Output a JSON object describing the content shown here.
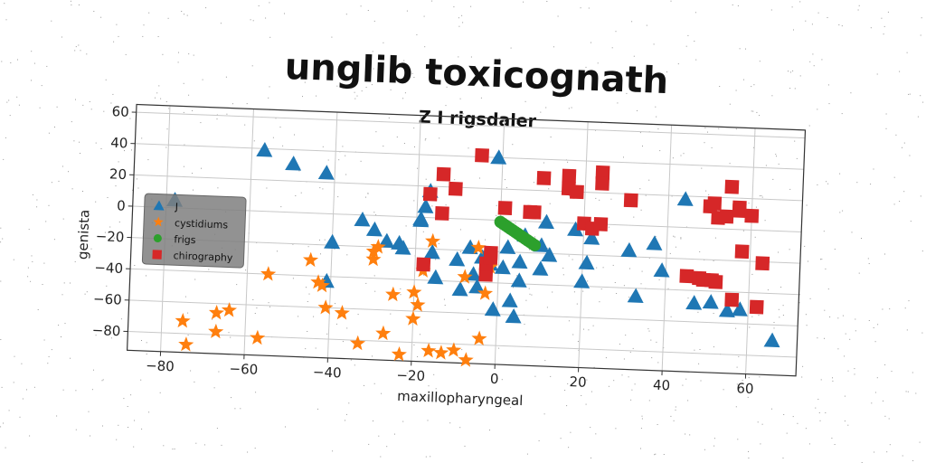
{
  "chart_data": {
    "type": "scatter",
    "title": "unglib toxicognath",
    "subtitle": "Z I rigsdaler",
    "xlabel": "maxillopharyngeal",
    "ylabel": "genista",
    "xlim": [
      -88,
      72
    ],
    "ylim": [
      -92,
      65
    ],
    "xticks": [
      -80,
      -60,
      -40,
      -20,
      0,
      20,
      40,
      60
    ],
    "yticks": [
      -80,
      -60,
      -40,
      -20,
      0,
      20,
      40,
      60
    ],
    "grid": true,
    "legend_position": "center-left",
    "series": [
      {
        "name": "J",
        "marker": "triangle",
        "color": "#1f77b4",
        "points": [
          [
            -57,
            39
          ],
          [
            -50,
            31
          ],
          [
            -42,
            26
          ],
          [
            -78,
            5
          ],
          [
            -40,
            -18
          ],
          [
            -33,
            -3
          ],
          [
            -30,
            -9
          ],
          [
            -27,
            -16
          ],
          [
            -24,
            -17
          ],
          [
            -23,
            -20
          ],
          [
            -19,
            -2
          ],
          [
            -19,
            -1
          ],
          [
            -18,
            7
          ],
          [
            -17,
            17
          ],
          [
            -16,
            -22
          ],
          [
            -15,
            -38
          ],
          [
            -10,
            -26
          ],
          [
            -9,
            -45
          ],
          [
            -7,
            -18
          ],
          [
            -6,
            -35
          ],
          [
            -5,
            -43
          ],
          [
            -4,
            -24
          ],
          [
            -2,
            -28
          ],
          [
            -1,
            -57
          ],
          [
            -1,
            40
          ],
          [
            1,
            -30
          ],
          [
            2,
            -17
          ],
          [
            3,
            -51
          ],
          [
            4,
            -61
          ],
          [
            5,
            -38
          ],
          [
            5,
            -26
          ],
          [
            6,
            -9
          ],
          [
            10,
            -15
          ],
          [
            10,
            -30
          ],
          [
            11,
            0
          ],
          [
            12,
            -21
          ],
          [
            18,
            -4
          ],
          [
            20,
            -37
          ],
          [
            21,
            -25
          ],
          [
            22,
            -9
          ],
          [
            31,
            -16
          ],
          [
            33,
            -45
          ],
          [
            37,
            -11
          ],
          [
            39,
            -28
          ],
          [
            44,
            18
          ],
          [
            47,
            -48
          ],
          [
            51,
            -47
          ],
          [
            55,
            -52
          ],
          [
            58,
            -51
          ],
          [
            66,
            -70
          ],
          [
            -41,
            -43
          ]
        ]
      },
      {
        "name": "cystidiums",
        "marker": "star",
        "color": "#ff7f0e",
        "points": [
          [
            -75,
            -72
          ],
          [
            -74,
            -87
          ],
          [
            -67,
            -66
          ],
          [
            -67,
            -78
          ],
          [
            -64,
            -64
          ],
          [
            -57,
            -81
          ],
          [
            -55,
            -40
          ],
          [
            -45,
            -30
          ],
          [
            -43,
            -44
          ],
          [
            -42,
            -46
          ],
          [
            -41,
            -60
          ],
          [
            -37,
            -63
          ],
          [
            -33,
            -82
          ],
          [
            -30,
            -28
          ],
          [
            -30,
            -23
          ],
          [
            -29,
            -20
          ],
          [
            -27,
            -75
          ],
          [
            -25,
            -50
          ],
          [
            -23,
            -88
          ],
          [
            -20,
            -48
          ],
          [
            -20,
            -65
          ],
          [
            -19,
            -56
          ],
          [
            -18,
            -34
          ],
          [
            -16,
            -15
          ],
          [
            -16,
            -85
          ],
          [
            -13,
            -86
          ],
          [
            -10,
            -84
          ],
          [
            -7,
            -90
          ],
          [
            -4,
            -76
          ],
          [
            -3,
            -47
          ],
          [
            -2,
            -30
          ],
          [
            -8,
            -37
          ],
          [
            -5,
            -18
          ]
        ]
      },
      {
        "name": "frigs",
        "marker": "circle",
        "color": "#2ca02c",
        "points": [
          [
            0,
            -1
          ],
          [
            0.6,
            -2
          ],
          [
            1.2,
            -3
          ],
          [
            1.8,
            -4
          ],
          [
            2.4,
            -5
          ],
          [
            3.0,
            -6
          ],
          [
            3.6,
            -7
          ],
          [
            4.2,
            -8
          ],
          [
            4.8,
            -9
          ],
          [
            5.4,
            -10
          ],
          [
            6.0,
            -11
          ],
          [
            6.6,
            -12
          ],
          [
            7.2,
            -13
          ],
          [
            7.8,
            -14
          ],
          [
            8.4,
            -15
          ]
        ]
      },
      {
        "name": "chirography",
        "marker": "square",
        "color": "#d62728",
        "points": [
          [
            -5,
            41
          ],
          [
            -14,
            28
          ],
          [
            -17,
            15
          ],
          [
            -11,
            19
          ],
          [
            -14,
            3
          ],
          [
            -18,
            -30
          ],
          [
            -3,
            -35
          ],
          [
            -2,
            -21
          ],
          [
            -3,
            -28
          ],
          [
            -2,
            -24
          ],
          [
            1,
            8
          ],
          [
            7,
            6
          ],
          [
            8,
            6
          ],
          [
            10,
            28
          ],
          [
            16,
            30
          ],
          [
            16,
            22
          ],
          [
            18,
            20
          ],
          [
            20,
            0
          ],
          [
            22,
            -3
          ],
          [
            24,
            0
          ],
          [
            24,
            33
          ],
          [
            24,
            26
          ],
          [
            31,
            16
          ],
          [
            45,
            -31
          ],
          [
            48,
            -32
          ],
          [
            49,
            -33
          ],
          [
            51,
            -33
          ],
          [
            52,
            -34
          ],
          [
            50,
            14
          ],
          [
            51,
            16
          ],
          [
            52,
            7
          ],
          [
            54,
            8
          ],
          [
            55,
            27
          ],
          [
            57,
            14
          ],
          [
            57,
            12
          ],
          [
            58,
            -14
          ],
          [
            60,
            9
          ],
          [
            63,
            -21
          ],
          [
            62,
            -49
          ],
          [
            56,
            -45
          ]
        ]
      }
    ]
  }
}
